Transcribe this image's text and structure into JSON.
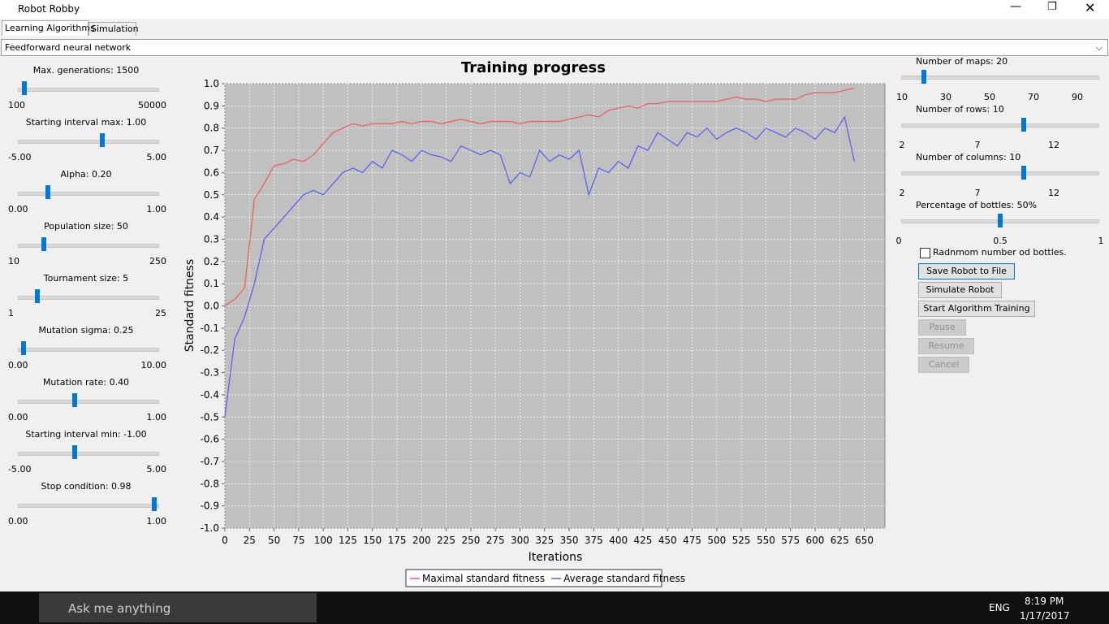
{
  "window": {
    "title": "Robot Robby",
    "tabs": [
      "Learning Algorithms",
      "Simulation"
    ],
    "dropdown": "Feedforward neural network"
  },
  "left_sliders": [
    {
      "label": "Max. generations:  1500",
      "min": "100",
      "max": "50000"
    },
    {
      "label": "Starting interval max:  1.00",
      "min": "-5.00",
      "max": "5.00"
    },
    {
      "label": "Alpha:  0.20",
      "min": "0.00",
      "max": "1.00"
    },
    {
      "label": "Population size:  50",
      "min": "10",
      "max": "250"
    },
    {
      "label": "Tournament size:  5",
      "min": "1",
      "max": "25"
    },
    {
      "label": "Mutation sigma:  0.25",
      "min": "0.00",
      "max": "10.00"
    },
    {
      "label": "Mutation rate:  0.40",
      "min": "0.00",
      "max": "1.00"
    },
    {
      "label": "Starting interval min:  -1.00",
      "min": "-5.00",
      "max": "5.00"
    },
    {
      "label": "Stop condition:  0.98",
      "min": "0.00",
      "max": "1.00"
    }
  ],
  "right_sliders": [
    {
      "label": "Number of maps: 20",
      "ticks": [
        "10",
        "30",
        "50",
        "70",
        "90"
      ]
    },
    {
      "label": "Number of rows: 10",
      "ticks": [
        "2",
        "7",
        "12"
      ]
    },
    {
      "label": "Number of columns: 10",
      "ticks": [
        "2",
        "7",
        "12"
      ]
    },
    {
      "label": "Percentage of bottles: 50%",
      "ticks": [
        "0",
        "0.5",
        "1"
      ]
    }
  ],
  "checkbox": "Radnmom number od bottles.",
  "buttons": [
    "Save Robot to File",
    "Simulate Robot",
    "Start Algorithm Training",
    "Pause",
    "Resume",
    "Cancel"
  ],
  "chart_data": {
    "type": "line",
    "title": "Training progress",
    "x_label": "Iterations",
    "y_label": "Standard fitness",
    "x": [
      0,
      10,
      20,
      30,
      40,
      50,
      60,
      70,
      80,
      90,
      100,
      110,
      120,
      130,
      140,
      150,
      160,
      170,
      180,
      190,
      200,
      210,
      220,
      230,
      240,
      250,
      260,
      270,
      280,
      290,
      300,
      310,
      320,
      330,
      340,
      350,
      360,
      370,
      380,
      390,
      400,
      410,
      420,
      430,
      440,
      450,
      460,
      470,
      480,
      490,
      500,
      510,
      520,
      530,
      540,
      550,
      560,
      570,
      580,
      590,
      600,
      610,
      620,
      630,
      640
    ],
    "series": [
      {
        "name": "Maximal standard fitness",
        "color": "#f05a5a",
        "values": [
          0.0,
          0.03,
          0.08,
          0.48,
          0.55,
          0.63,
          0.64,
          0.66,
          0.65,
          0.68,
          0.73,
          0.78,
          0.8,
          0.82,
          0.81,
          0.82,
          0.82,
          0.82,
          0.83,
          0.82,
          0.83,
          0.83,
          0.82,
          0.83,
          0.84,
          0.83,
          0.82,
          0.83,
          0.83,
          0.83,
          0.82,
          0.83,
          0.83,
          0.83,
          0.83,
          0.84,
          0.85,
          0.86,
          0.85,
          0.88,
          0.89,
          0.9,
          0.89,
          0.91,
          0.91,
          0.92,
          0.92,
          0.92,
          0.92,
          0.92,
          0.92,
          0.93,
          0.94,
          0.93,
          0.93,
          0.92,
          0.93,
          0.93,
          0.93,
          0.95,
          0.96,
          0.96,
          0.96,
          0.97,
          0.98
        ]
      },
      {
        "name": "Average standard fitness",
        "color": "#5a5af0",
        "values": [
          -0.5,
          -0.15,
          -0.05,
          0.1,
          0.3,
          0.35,
          0.4,
          0.45,
          0.5,
          0.52,
          0.5,
          0.55,
          0.6,
          0.62,
          0.6,
          0.65,
          0.62,
          0.7,
          0.68,
          0.65,
          0.7,
          0.68,
          0.67,
          0.65,
          0.72,
          0.7,
          0.68,
          0.7,
          0.68,
          0.55,
          0.6,
          0.58,
          0.7,
          0.65,
          0.68,
          0.66,
          0.7,
          0.5,
          0.62,
          0.6,
          0.65,
          0.62,
          0.72,
          0.7,
          0.78,
          0.75,
          0.72,
          0.78,
          0.76,
          0.8,
          0.75,
          0.78,
          0.8,
          0.78,
          0.75,
          0.8,
          0.78,
          0.76,
          0.8,
          0.78,
          0.75,
          0.8,
          0.78,
          0.85,
          0.65
        ]
      }
    ],
    "xlim": [
      0,
      671
    ],
    "xticks": [
      0,
      25,
      50,
      75,
      100,
      125,
      150,
      175,
      200,
      225,
      250,
      275,
      300,
      325,
      350,
      375,
      400,
      425,
      450,
      475,
      500,
      525,
      550,
      575,
      600,
      625,
      650
    ],
    "ylim": [
      -1,
      1
    ],
    "yticks": [
      {
        "value": -1,
        "label": "-1.0"
      },
      -0.9,
      -0.8,
      -0.7,
      -0.6,
      -0.5,
      -0.4,
      -0.3,
      -0.2,
      -0.1,
      {
        "value": 0,
        "label": "0.0"
      },
      0.1,
      0.2,
      0.3,
      0.4,
      0.5,
      0.6,
      0.7,
      0.8,
      0.9,
      {
        "value": 1,
        "label": "1.0"
      }
    ],
    "grid": true
  },
  "taskbar": {
    "search": "Ask me anything",
    "language": "ENG",
    "time": "8:19 PM",
    "date": "1/17/2017"
  }
}
